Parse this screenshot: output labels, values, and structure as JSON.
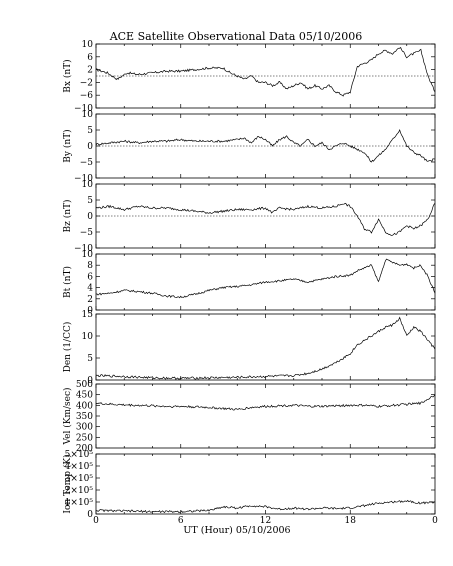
{
  "title": "ACE Satellite Observational Data   05/10/2006",
  "x_axis": {
    "label": "UT (Hour)   05/10/2006",
    "range": [
      0,
      24
    ],
    "tick_labels": [
      "0",
      "6",
      "12",
      "18",
      "0"
    ]
  },
  "chart_data": [
    {
      "type": "line",
      "ylabel": "Bx (nT)",
      "ylim": [
        -10,
        10
      ],
      "yticks": [
        -10,
        -6,
        -2,
        2,
        6,
        10
      ],
      "ytick_labels": [
        "−10",
        "−6",
        "−2",
        "2",
        "6",
        "10"
      ],
      "zero_line": true,
      "x": [
        0,
        0.8,
        1.5,
        2.2,
        3,
        4,
        5,
        6,
        7,
        8,
        9,
        9.5,
        10,
        10.5,
        11,
        11.5,
        12,
        12.5,
        13,
        13.5,
        14,
        14.5,
        15,
        15.5,
        16,
        16.5,
        17,
        17.5,
        18,
        18.5,
        19,
        19.5,
        20,
        20.5,
        21,
        21.5,
        22,
        22.5,
        23,
        23.5,
        24
      ],
      "values": [
        2,
        1,
        -1,
        1,
        0.5,
        1,
        1.5,
        1.5,
        2,
        2.5,
        2.5,
        1,
        0,
        -1,
        0,
        -2,
        -2,
        -3,
        -2,
        -4,
        -3,
        -2,
        -4,
        -3,
        -4,
        -3,
        -5,
        -6,
        -5,
        3,
        4,
        5,
        7,
        8,
        7,
        9,
        6,
        7,
        8,
        0,
        -5
      ]
    },
    {
      "type": "line",
      "ylabel": "By (nT)",
      "ylim": [
        -10,
        10
      ],
      "yticks": [
        -10,
        -5,
        0,
        5,
        10
      ],
      "ytick_labels": [
        "−10",
        "−5",
        "0",
        "5",
        "10"
      ],
      "zero_line": true,
      "x": [
        0,
        1,
        2,
        3,
        4,
        5,
        6,
        7,
        8,
        9,
        10,
        10.5,
        11,
        11.5,
        12,
        12.5,
        13,
        13.5,
        14,
        14.5,
        15,
        15.5,
        16,
        16.5,
        17,
        17.5,
        18,
        18.5,
        19,
        19.5,
        20,
        20.5,
        21,
        21.5,
        22,
        22.5,
        23,
        23.5,
        24
      ],
      "values": [
        0.5,
        1,
        1.5,
        1,
        1.5,
        1.5,
        2,
        1.5,
        1.5,
        1.5,
        2,
        2.5,
        1,
        3,
        2,
        0,
        2,
        3,
        1,
        0,
        2,
        0,
        1,
        -1,
        0,
        1,
        0,
        -1,
        -2,
        -5,
        -3,
        -1,
        2,
        5,
        0,
        -2,
        -3,
        -5,
        -4
      ]
    },
    {
      "type": "line",
      "ylabel": "Bz (nT)",
      "ylim": [
        -10,
        10
      ],
      "yticks": [
        -10,
        -5,
        0,
        5,
        10
      ],
      "ytick_labels": [
        "−10",
        "−5",
        "0",
        "5",
        "10"
      ],
      "zero_line": true,
      "x": [
        0,
        1,
        2,
        3,
        4,
        5,
        6,
        7,
        8,
        9,
        10,
        11,
        12,
        12.5,
        13,
        14,
        15,
        16,
        17,
        17.5,
        18,
        18.5,
        19,
        19.5,
        20,
        20.5,
        21,
        21.5,
        22,
        22.5,
        23,
        23.5,
        24
      ],
      "values": [
        2.5,
        3,
        2,
        3,
        2.5,
        2.5,
        2,
        1.5,
        1,
        1.5,
        2,
        2,
        2.5,
        1,
        2.5,
        2,
        3,
        2.5,
        3,
        4,
        3,
        0,
        -4,
        -5,
        -1,
        -5,
        -6,
        -5,
        -3,
        -4,
        -3,
        -1,
        4
      ]
    },
    {
      "type": "line",
      "ylabel": "Bt (nT)",
      "ylim": [
        0,
        10
      ],
      "yticks": [
        0,
        2,
        4,
        6,
        8,
        10
      ],
      "ytick_labels": [
        "0",
        "2",
        "4",
        "6",
        "8",
        "10"
      ],
      "zero_line": false,
      "x": [
        0,
        1,
        2,
        3,
        4,
        5,
        6,
        7,
        8,
        9,
        10,
        11,
        12,
        13,
        14,
        15,
        16,
        17,
        18,
        18.5,
        19,
        19.5,
        20,
        20.5,
        21,
        21.5,
        22,
        22.5,
        23,
        23.5,
        24
      ],
      "values": [
        2.8,
        3,
        3.5,
        3.3,
        3,
        2.5,
        2.3,
        2.8,
        3.5,
        4,
        4.2,
        4.5,
        5,
        5.2,
        5.5,
        5,
        5.5,
        6,
        6.2,
        7,
        7.5,
        8,
        5,
        9,
        8.5,
        8,
        8.2,
        7.5,
        8,
        6,
        3
      ]
    },
    {
      "type": "line",
      "ylabel": "Den (1/CC)",
      "ylim": [
        0,
        15
      ],
      "yticks": [
        0,
        5,
        10,
        15
      ],
      "ytick_labels": [
        "0",
        "5",
        "10",
        "15"
      ],
      "zero_line": false,
      "x": [
        0,
        2,
        4,
        6,
        8,
        10,
        12,
        14,
        15,
        16,
        17,
        18,
        18.5,
        19,
        19.5,
        20,
        20.5,
        21,
        21.5,
        22,
        22.5,
        23,
        23.5,
        24
      ],
      "values": [
        1,
        0.8,
        0.5,
        0.4,
        0.5,
        0.6,
        0.8,
        1,
        1.5,
        2.5,
        4,
        6,
        8,
        9,
        10,
        11,
        12,
        12.5,
        14,
        10,
        12,
        11,
        9,
        7
      ]
    },
    {
      "type": "line",
      "ylabel": "Vel (Km/sec)",
      "ylim": [
        200,
        500
      ],
      "yticks": [
        200,
        250,
        300,
        350,
        400,
        450,
        500
      ],
      "ytick_labels": [
        "200",
        "250",
        "300",
        "350",
        "400",
        "450",
        "500"
      ],
      "zero_line": false,
      "x": [
        0,
        1,
        2,
        3,
        4,
        5,
        6,
        7,
        8,
        9,
        10,
        11,
        12,
        13,
        14,
        15,
        16,
        17,
        18,
        19,
        20,
        21,
        22,
        23,
        23.5,
        24
      ],
      "values": [
        410,
        405,
        402,
        400,
        398,
        395,
        395,
        393,
        390,
        385,
        380,
        390,
        395,
        398,
        400,
        395,
        395,
        398,
        400,
        400,
        395,
        400,
        405,
        410,
        430,
        450
      ]
    },
    {
      "type": "line",
      "ylabel": "Ion Temp (K)",
      "ylim": [
        0,
        500000
      ],
      "yticks": [
        0,
        100000,
        200000,
        300000,
        400000,
        500000
      ],
      "ytick_labels": [
        "0",
        "1×10⁵",
        "2×10⁵",
        "3×10⁵",
        "4×10⁵",
        "5×10⁵"
      ],
      "zero_line": false,
      "x": [
        0,
        2,
        4,
        6,
        8,
        9,
        10,
        11,
        12,
        13,
        14,
        15,
        16,
        17,
        18,
        19,
        20,
        21,
        22,
        23,
        24
      ],
      "values": [
        30000,
        25000,
        20000,
        20000,
        30000,
        60000,
        50000,
        70000,
        60000,
        40000,
        50000,
        40000,
        50000,
        45000,
        50000,
        70000,
        90000,
        100000,
        110000,
        90000,
        100000
      ]
    }
  ]
}
